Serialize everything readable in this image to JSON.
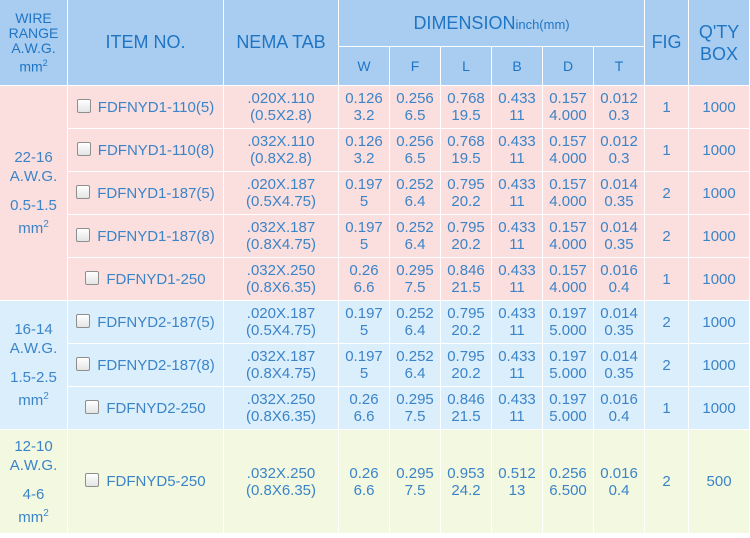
{
  "header": {
    "wire_range": [
      "WIRE",
      "RANGE",
      "A.W.G."
    ],
    "wire_unit": "mm",
    "wire_unit_sup": "2",
    "item_no": "ITEM NO.",
    "nema_tab": "NEMA TAB",
    "dimension": "DIMENSION",
    "dimension_unit": "inch(mm)",
    "dims": [
      "W",
      "F",
      "L",
      "B",
      "D",
      "T"
    ],
    "fig": "FIG",
    "qty": [
      "Q'TY",
      "BOX"
    ]
  },
  "groups": [
    {
      "wire": [
        "22-16",
        "A.W.G.",
        "0.5-1.5",
        "mm",
        "2"
      ],
      "rows": [
        {
          "item": "FDFNYD1-110(5)",
          "nema": [
            ".020X.110",
            "(0.5X2.8)"
          ],
          "W": [
            "0.126",
            "3.2"
          ],
          "F": [
            "0.256",
            "6.5"
          ],
          "L": [
            "0.768",
            "19.5"
          ],
          "B": [
            "0.433",
            "11"
          ],
          "D": [
            "0.157",
            "4.000"
          ],
          "T": [
            "0.012",
            "0.3"
          ],
          "fig": "1",
          "qty": "1000"
        },
        {
          "item": "FDFNYD1-110(8)",
          "nema": [
            ".032X.110",
            "(0.8X2.8)"
          ],
          "W": [
            "0.126",
            "3.2"
          ],
          "F": [
            "0.256",
            "6.5"
          ],
          "L": [
            "0.768",
            "19.5"
          ],
          "B": [
            "0.433",
            "11"
          ],
          "D": [
            "0.157",
            "4.000"
          ],
          "T": [
            "0.012",
            "0.3"
          ],
          "fig": "1",
          "qty": "1000"
        },
        {
          "item": "FDFNYD1-187(5)",
          "nema": [
            ".020X.187",
            "(0.5X4.75)"
          ],
          "W": [
            "0.197",
            "5"
          ],
          "F": [
            "0.252",
            "6.4"
          ],
          "L": [
            "0.795",
            "20.2"
          ],
          "B": [
            "0.433",
            "11"
          ],
          "D": [
            "0.157",
            "4.000"
          ],
          "T": [
            "0.014",
            "0.35"
          ],
          "fig": "2",
          "qty": "1000"
        },
        {
          "item": "FDFNYD1-187(8)",
          "nema": [
            ".032X.187",
            "(0.8X4.75)"
          ],
          "W": [
            "0.197",
            "5"
          ],
          "F": [
            "0.252",
            "6.4"
          ],
          "L": [
            "0.795",
            "20.2"
          ],
          "B": [
            "0.433",
            "11"
          ],
          "D": [
            "0.157",
            "4.000"
          ],
          "T": [
            "0.014",
            "0.35"
          ],
          "fig": "2",
          "qty": "1000"
        },
        {
          "item": "FDFNYD1-250",
          "nema": [
            ".032X.250",
            "(0.8X6.35)"
          ],
          "W": [
            "0.26",
            "6.6"
          ],
          "F": [
            "0.295",
            "7.5"
          ],
          "L": [
            "0.846",
            "21.5"
          ],
          "B": [
            "0.433",
            "11"
          ],
          "D": [
            "0.157",
            "4.000"
          ],
          "T": [
            "0.016",
            "0.4"
          ],
          "fig": "1",
          "qty": "1000"
        }
      ]
    },
    {
      "wire": [
        "16-14",
        "A.W.G.",
        "1.5-2.5",
        "mm",
        "2"
      ],
      "rows": [
        {
          "item": "FDFNYD2-187(5)",
          "nema": [
            ".020X.187",
            "(0.5X4.75)"
          ],
          "W": [
            "0.197",
            "5"
          ],
          "F": [
            "0.252",
            "6.4"
          ],
          "L": [
            "0.795",
            "20.2"
          ],
          "B": [
            "0.433",
            "11"
          ],
          "D": [
            "0.197",
            "5.000"
          ],
          "T": [
            "0.014",
            "0.35"
          ],
          "fig": "2",
          "qty": "1000"
        },
        {
          "item": "FDFNYD2-187(8)",
          "nema": [
            ".032X.187",
            "(0.8X4.75)"
          ],
          "W": [
            "0.197",
            "5"
          ],
          "F": [
            "0.252",
            "6.4"
          ],
          "L": [
            "0.795",
            "20.2"
          ],
          "B": [
            "0.433",
            "11"
          ],
          "D": [
            "0.197",
            "5.000"
          ],
          "T": [
            "0.014",
            "0.35"
          ],
          "fig": "2",
          "qty": "1000"
        },
        {
          "item": "FDFNYD2-250",
          "nema": [
            ".032X.250",
            "(0.8X6.35)"
          ],
          "W": [
            "0.26",
            "6.6"
          ],
          "F": [
            "0.295",
            "7.5"
          ],
          "L": [
            "0.846",
            "21.5"
          ],
          "B": [
            "0.433",
            "11"
          ],
          "D": [
            "0.197",
            "5.000"
          ],
          "T": [
            "0.016",
            "0.4"
          ],
          "fig": "1",
          "qty": "1000"
        }
      ]
    },
    {
      "wire": [
        "12-10",
        "A.W.G.",
        "4-6",
        "mm",
        "2"
      ],
      "rows": [
        {
          "item": "FDFNYD5-250",
          "nema": [
            ".032X.250",
            "(0.8X6.35)"
          ],
          "W": [
            "0.26",
            "6.6"
          ],
          "F": [
            "0.295",
            "7.5"
          ],
          "L": [
            "0.953",
            "24.2"
          ],
          "B": [
            "0.512",
            "13"
          ],
          "D": [
            "0.256",
            "6.500"
          ],
          "T": [
            "0.016",
            "0.4"
          ],
          "fig": "2",
          "qty": "500"
        }
      ]
    }
  ],
  "colors": {
    "header_bg": "#a9cdf0",
    "header_text": "#1f75c4",
    "body_text": "#3b84c8",
    "group1_bg": "#fbdede",
    "group2_bg": "#dbeefb",
    "group3_bg": "#f3f8e1"
  },
  "icons": {
    "row_select": "checkbox-icon"
  }
}
